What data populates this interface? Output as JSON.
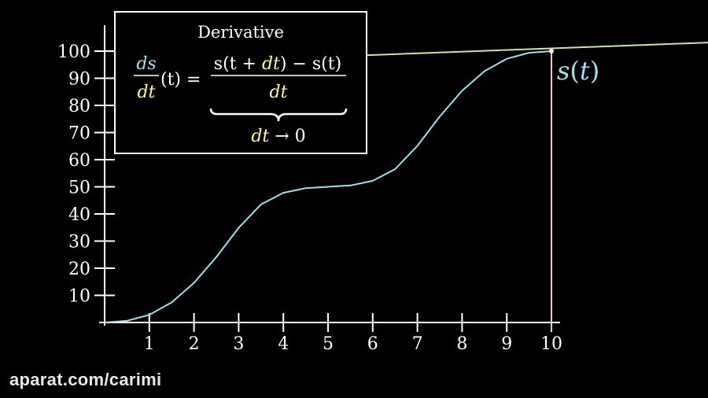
{
  "chart_data": {
    "type": "line",
    "x_ticks": [
      "1",
      "2",
      "3",
      "4",
      "5",
      "6",
      "7",
      "8",
      "9",
      "10"
    ],
    "y_ticks": [
      "10",
      "20",
      "30",
      "40",
      "50",
      "60",
      "70",
      "80",
      "90",
      "100"
    ],
    "xlim": [
      0,
      10
    ],
    "ylim": [
      0,
      100
    ],
    "grid": false,
    "series": [
      {
        "name": "s(t)",
        "x": [
          0,
          0.5,
          1,
          1.5,
          2,
          2.5,
          3,
          3.5,
          4,
          4.5,
          5,
          5.5,
          6,
          6.5,
          7,
          7.5,
          8,
          8.5,
          9,
          9.5,
          10
        ],
        "y": [
          0,
          0.6,
          2.8,
          7.4,
          14.6,
          24.1,
          34.9,
          43.5,
          47.8,
          49.5,
          50,
          50.5,
          52.2,
          56.5,
          65.1,
          75.9,
          85.4,
          92.6,
          97.2,
          99.4,
          100
        ]
      }
    ],
    "tangent_line": {
      "x": [
        4.7,
        13.6
      ],
      "y": [
        97.8,
        103.2
      ]
    },
    "marker": {
      "x": 10,
      "y": 100
    },
    "curve_label": {
      "s": "s",
      "t": "t"
    },
    "colors": {
      "curve": "#9fe0ec",
      "tangent": "#c8e6a0",
      "vertical": "#f2c6cc",
      "highlight": "#ffff80",
      "text": "#ffffff"
    }
  },
  "formula_box": {
    "title": "Derivative",
    "ds": "ds",
    "dt": "dt",
    "of_t": "(t) =",
    "num_a": "s(t + ",
    "num_dt": "dt",
    "num_b": ") − s(t)",
    "den_dt": "dt",
    "limit_dt": "dt",
    "limit_rest": "→ 0"
  },
  "watermark": "aparat.com/carimi"
}
